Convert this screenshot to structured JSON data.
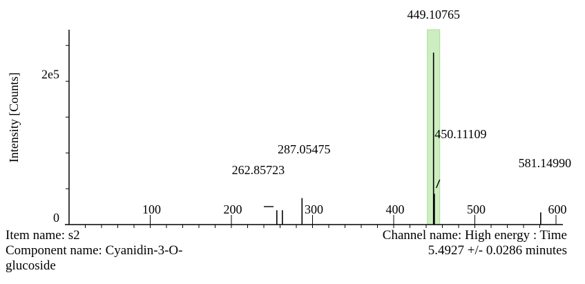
{
  "chart_data": {
    "type": "bar",
    "ylabel": "Intensity [Counts]",
    "xlabel": "",
    "xlim": [
      0,
      600
    ],
    "ylim": [
      0,
      270000
    ],
    "x_ticks": [
      100,
      200,
      300,
      400,
      500,
      600
    ],
    "y_ticks": [
      {
        "value": 0,
        "label": "0"
      },
      {
        "value": 200000,
        "label": "2e5"
      }
    ],
    "highlight": {
      "x": 449.10765,
      "color": "#cdeec0"
    },
    "peaks": [
      {
        "x": 256.0,
        "y": 20000
      },
      {
        "x": 262.85723,
        "y": 20000,
        "label": "262.85723"
      },
      {
        "x": 287.05475,
        "y": 37000,
        "label": "287.05475"
      },
      {
        "x": 449.10765,
        "y": 240000,
        "label": "449.10765"
      },
      {
        "x": 450.11109,
        "y": 43000,
        "label": "450.11109"
      },
      {
        "x": 581.1499,
        "y": 17000,
        "label": "581.14990"
      }
    ]
  },
  "info": {
    "item_name": "Item name: s2",
    "component_line1": "Component name: Cyanidin-3-O-",
    "component_line2": "glucoside",
    "channel_name": "Channel name: High energy : Time",
    "time_range": "5.4927 +/- 0.0286 minutes"
  }
}
